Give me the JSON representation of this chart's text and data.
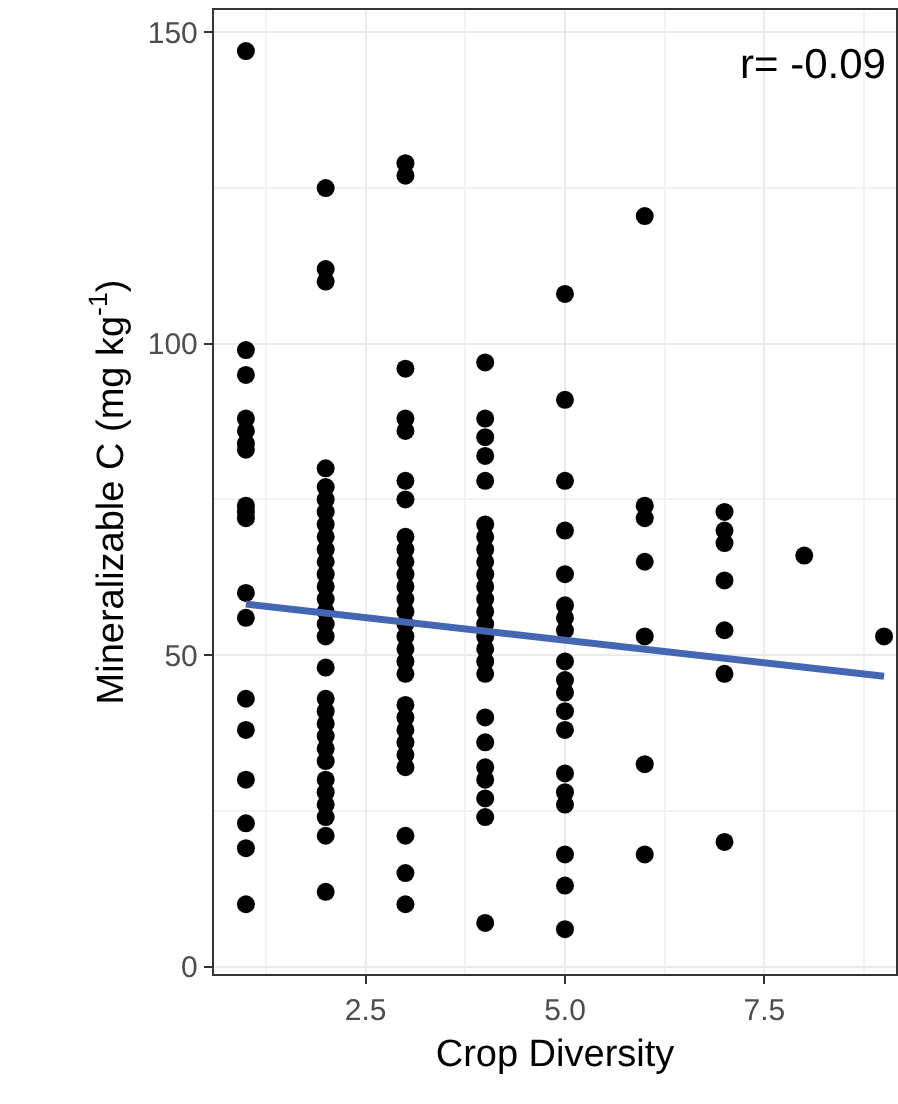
{
  "chart_data": {
    "type": "scatter",
    "xlabel": "Crop Diversity",
    "ylabel": "Mineralizable C (mg kg$^{-1}$)",
    "annotations": [
      "r= -0.09"
    ],
    "xlim": [
      0.6,
      9.15
    ],
    "xticks": [
      2.5,
      {
        "value": 5,
        "label": "5.0"
      },
      7.5
    ],
    "ylim": [
      -1.2,
      153.6
    ],
    "yticks": [
      0,
      50,
      100,
      150
    ],
    "grid": true,
    "marker": "circle",
    "series": [
      {
        "color": "#000000",
        "x": [
          1,
          1,
          1,
          1,
          1,
          1,
          1,
          1,
          1,
          1,
          1,
          1,
          1,
          1,
          1,
          1,
          1,
          1,
          2,
          2,
          2,
          2,
          2,
          2,
          2,
          2,
          2,
          2,
          2,
          2,
          2,
          2,
          2,
          2,
          2,
          2,
          2,
          2,
          2,
          2,
          2,
          2,
          2,
          2,
          2,
          2,
          2,
          2,
          3,
          3,
          3,
          3,
          3,
          3,
          3,
          3,
          3,
          3,
          3,
          3,
          3,
          3,
          3,
          3,
          3,
          3,
          3,
          3,
          3,
          3,
          3,
          3,
          3,
          3,
          3,
          3,
          4,
          4,
          4,
          4,
          4,
          4,
          4,
          4,
          4,
          4,
          4,
          4,
          4,
          4,
          4,
          4,
          4,
          4,
          4,
          4,
          4,
          4,
          4,
          4,
          4,
          5,
          5,
          5,
          5,
          5,
          5,
          5,
          5,
          5,
          5,
          5,
          5,
          5,
          5,
          5,
          5,
          5,
          5,
          5,
          6,
          6,
          6,
          6,
          6,
          6,
          6,
          7,
          7,
          7,
          7,
          7,
          7,
          7,
          8,
          9
        ],
        "values": [
          147,
          99,
          95,
          88,
          86,
          84,
          83,
          74,
          73,
          72,
          60,
          56,
          43,
          38,
          30,
          23,
          19,
          10,
          125,
          112,
          110,
          80,
          77,
          75,
          73,
          71,
          69,
          67,
          65,
          63,
          61,
          59,
          57,
          55,
          53,
          48,
          43,
          41,
          39,
          37,
          35,
          33,
          30,
          28,
          26,
          24,
          21,
          12,
          129,
          127,
          96,
          88,
          86,
          78,
          75,
          69,
          67,
          65,
          63,
          61,
          59,
          57,
          55,
          53,
          51,
          49,
          47,
          42,
          40,
          38,
          36,
          34,
          32,
          21,
          15,
          10,
          97,
          88,
          85,
          82,
          78,
          71,
          69,
          67,
          65,
          63,
          61,
          59,
          57,
          55,
          53,
          51,
          49,
          47,
          40,
          36,
          32,
          30,
          27,
          24,
          7,
          108,
          91,
          78,
          70,
          63,
          58,
          56,
          54,
          49,
          46,
          44,
          41,
          38,
          31,
          28,
          26,
          18,
          13,
          6,
          120.5,
          74,
          72,
          65,
          53,
          32.5,
          18,
          73,
          70,
          68,
          62,
          54,
          47,
          20,
          66,
          53
        ]
      },
      {
        "type": "line",
        "color": "#4566b3",
        "marker": "none",
        "line_style": "solid",
        "x": [
          1,
          9
        ],
        "values": [
          58.2,
          46.6
        ]
      }
    ]
  }
}
